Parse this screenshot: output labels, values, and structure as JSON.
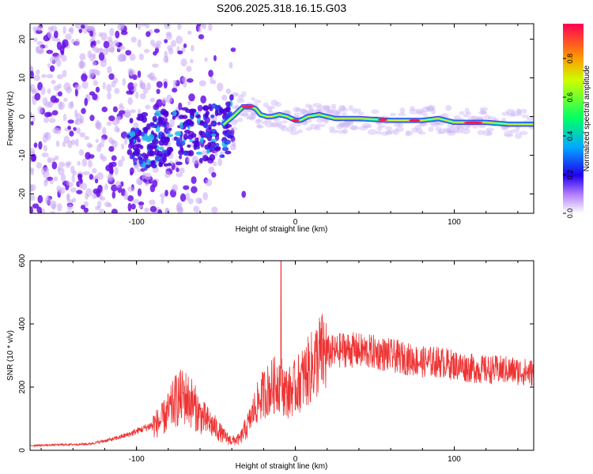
{
  "title": "S206.2025.318.16.15.G03",
  "colors": {
    "snr_line": "#ee3333",
    "spectrogram_low": "#d8c8f4",
    "spectrogram_mid": "#5a00d8"
  },
  "chart_data": [
    {
      "type": "heatmap",
      "name_hint": "spectrogram",
      "xlabel": "Height of straight line (km)",
      "ylabel": "Frequency (Hz)",
      "xlim": [
        -167,
        150
      ],
      "ylim": [
        -25,
        24
      ],
      "xticks": [
        "-100",
        "0",
        "100"
      ],
      "yticks": [
        "20",
        "10",
        "0",
        "-10",
        "-20"
      ],
      "xtick_values": [
        -100,
        0,
        100
      ],
      "ytick_values": [
        20,
        10,
        0,
        -10,
        -20
      ],
      "colorbar": {
        "label": "Normalized spectral amplitude",
        "ticks": [
          "0.0",
          "0.2",
          "0.4",
          "0.6",
          "0.8"
        ],
        "tick_values": [
          0.0,
          0.2,
          0.4,
          0.6,
          0.8
        ],
        "range": [
          0,
          0.98
        ]
      },
      "ridge": {
        "x": [
          -45,
          -38,
          -33,
          -28,
          -25,
          -22,
          -18,
          -15,
          -10,
          -5,
          0,
          3,
          8,
          15,
          25,
          40,
          60,
          80,
          90,
          100,
          110,
          120,
          135,
          150
        ],
        "freq": [
          -2,
          0.5,
          2.5,
          2.5,
          2,
          0.5,
          0,
          0,
          0.5,
          0,
          -1,
          -1,
          0,
          0.5,
          -0.5,
          -0.5,
          -1,
          -1,
          -0.5,
          -1.5,
          -1.5,
          -1.5,
          -2,
          -2
        ]
      }
    },
    {
      "type": "line",
      "name_hint": "snr",
      "xlabel": "Height of straight line (km)",
      "ylabel": "SNR (10 * v/v)",
      "xlim": [
        -167,
        150
      ],
      "ylim": [
        0,
        600
      ],
      "xticks": [
        "-100",
        "0",
        "100"
      ],
      "yticks": [
        "0",
        "200",
        "400",
        "600"
      ],
      "xtick_values": [
        -100,
        0,
        100
      ],
      "ytick_values": [
        0,
        200,
        400,
        600
      ],
      "envelope": {
        "x": [
          -167,
          -130,
          -115,
          -105,
          -100,
          -95,
          -85,
          -80,
          -75,
          -70,
          -65,
          -60,
          -55,
          -50,
          -45,
          -40,
          -35,
          -30,
          -25,
          -20,
          -15,
          -12,
          -10,
          -8,
          -5,
          0,
          5,
          10,
          15,
          20,
          25,
          30,
          40,
          50,
          60,
          70,
          80,
          90,
          100,
          110,
          120,
          130,
          140,
          150
        ],
        "y": [
          15,
          20,
          35,
          50,
          60,
          70,
          90,
          120,
          160,
          170,
          150,
          110,
          90,
          70,
          45,
          30,
          35,
          80,
          140,
          180,
          200,
          210,
          220,
          200,
          180,
          200,
          230,
          260,
          300,
          310,
          310,
          320,
          315,
          310,
          300,
          290,
          280,
          280,
          270,
          260,
          255,
          255,
          250,
          245
        ]
      },
      "spike": {
        "x": -9,
        "y": 600
      }
    }
  ]
}
